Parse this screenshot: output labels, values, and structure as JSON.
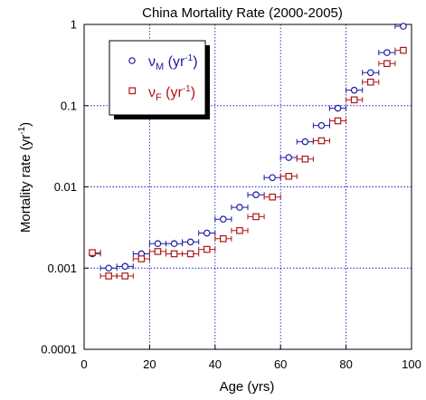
{
  "chart_data": {
    "type": "scatter",
    "title": "China Mortality Rate (2000-2005)",
    "xlabel": "Age (yrs)",
    "ylabel": "Mortality rate (yr",
    "ylabel_sup": "-1",
    "ylabel_close": ")",
    "xlim": [
      0,
      100
    ],
    "ylim": [
      0.0001,
      1
    ],
    "yscale": "log",
    "grid": true,
    "legend_position": "top-left",
    "x_ticks": [
      "0",
      "20",
      "40",
      "60",
      "80",
      "100"
    ],
    "x_tick_values": [
      0,
      20,
      40,
      60,
      80,
      100
    ],
    "y_ticks": [
      "0.0001",
      "0.001",
      "0.01",
      "0.1",
      "1"
    ],
    "y_tick_values": [
      0.0001,
      0.001,
      0.01,
      0.1,
      1
    ],
    "series": [
      {
        "name_main": "ν",
        "name_sub": "M",
        "name_rest": " (yr",
        "name_sup": "-1",
        "name_close": ")",
        "marker": "circle",
        "color": "#1a1aa6",
        "x": [
          2.5,
          7.5,
          12.5,
          17.5,
          22.5,
          27.5,
          32.5,
          37.5,
          42.5,
          47.5,
          52.5,
          57.5,
          62.5,
          67.5,
          72.5,
          77.5,
          82.5,
          87.5,
          92.5,
          97.5
        ],
        "xerr_low": [
          0,
          2.5,
          2.5,
          2.5,
          2.5,
          2.5,
          2.5,
          2.5,
          2.5,
          2.5,
          2.5,
          2.5,
          2.5,
          2.5,
          2.5,
          2.5,
          2.5,
          2.5,
          2.5,
          2.5
        ],
        "xerr_high": [
          2.5,
          2.5,
          2.5,
          2.5,
          2.5,
          2.5,
          2.5,
          2.5,
          2.5,
          2.5,
          2.5,
          2.5,
          2.5,
          2.5,
          2.5,
          2.5,
          2.5,
          2.5,
          2.5,
          0
        ],
        "values": [
          0.0015,
          0.001,
          0.00105,
          0.0015,
          0.002,
          0.002,
          0.0021,
          0.0027,
          0.004,
          0.0056,
          0.008,
          0.013,
          0.023,
          0.036,
          0.057,
          0.093,
          0.155,
          0.255,
          0.45,
          0.95
        ]
      },
      {
        "name_main": "ν",
        "name_sub": "F",
        "name_rest": " (yr",
        "name_sup": "-1",
        "name_close": ")",
        "marker": "square",
        "color": "#b01414",
        "x": [
          2.5,
          7.5,
          12.5,
          17.5,
          22.5,
          27.5,
          32.5,
          37.5,
          42.5,
          47.5,
          52.5,
          57.5,
          62.5,
          67.5,
          72.5,
          77.5,
          82.5,
          87.5,
          92.5,
          97.5
        ],
        "xerr_low": [
          0,
          2.5,
          2.5,
          2.5,
          2.5,
          2.5,
          2.5,
          2.5,
          2.5,
          2.5,
          2.5,
          2.5,
          2.5,
          2.5,
          2.5,
          2.5,
          2.5,
          2.5,
          2.5,
          2.5
        ],
        "xerr_high": [
          2.5,
          2.5,
          2.5,
          2.5,
          2.5,
          2.5,
          2.5,
          2.5,
          2.5,
          2.5,
          2.5,
          2.5,
          2.5,
          2.5,
          2.5,
          2.5,
          2.5,
          2.5,
          2.5,
          0
        ],
        "values": [
          0.00155,
          0.0008,
          0.0008,
          0.0013,
          0.0016,
          0.0015,
          0.0015,
          0.0017,
          0.0023,
          0.0029,
          0.0043,
          0.0075,
          0.0135,
          0.022,
          0.037,
          0.065,
          0.118,
          0.195,
          0.33,
          0.48
        ]
      }
    ]
  }
}
